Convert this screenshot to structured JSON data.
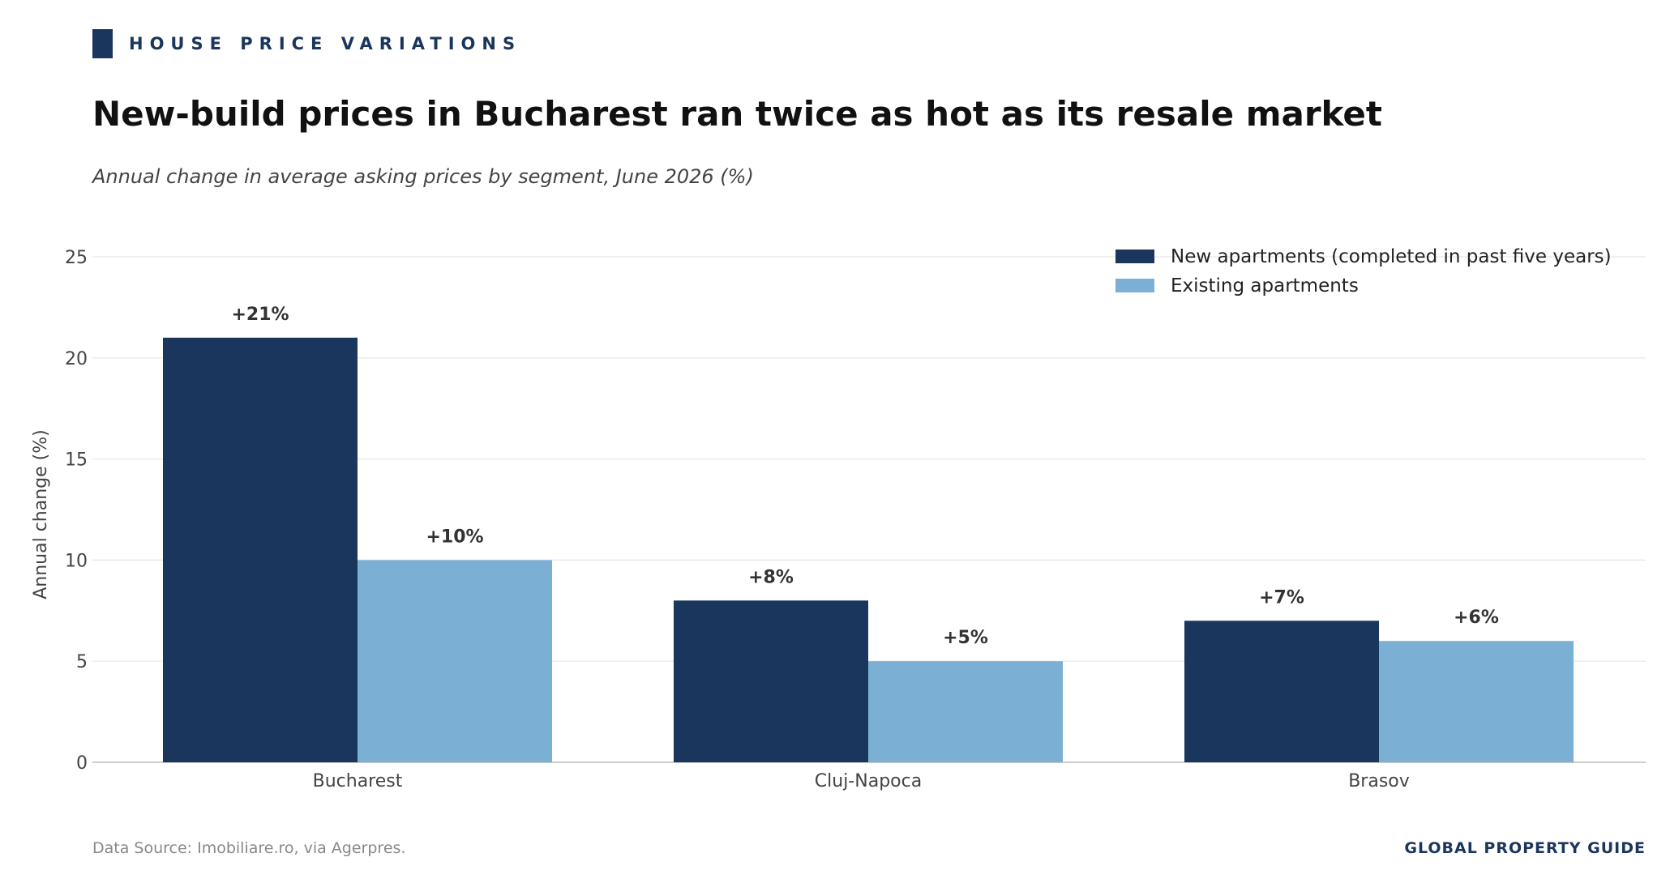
{
  "header": {
    "kicker": "HOUSE PRICE VARIATIONS",
    "title": "New-build prices in Bucharest ran twice as hot as its resale market",
    "subtitle": "Annual change in average asking prices by segment, June 2026 (%)"
  },
  "footer": {
    "source": "Data Source: Imobiliare.ro, via Agerpres.",
    "brand": "GLOBAL PROPERTY GUIDE"
  },
  "colors": {
    "new": "#1a365d",
    "existing": "#7bafd4",
    "accent": "#1a365d",
    "grid": "#e6e6e6"
  },
  "chart_data": {
    "type": "bar",
    "categories": [
      "Bucharest",
      "Cluj-Napoca",
      "Brasov"
    ],
    "series": [
      {
        "name": "New apartments (completed in past five years)",
        "values": [
          21,
          8,
          7
        ],
        "labels": [
          "+21%",
          "+8%",
          "+7%"
        ]
      },
      {
        "name": "Existing apartments",
        "values": [
          10,
          5,
          6
        ],
        "labels": [
          "+10%",
          "+5%",
          "+6%"
        ]
      }
    ],
    "ylabel": "Annual change (%)",
    "xlabel": "",
    "ylim": [
      0,
      25
    ],
    "yticks": [
      0,
      5,
      10,
      15,
      20,
      25
    ],
    "grid": true,
    "legend": "top-right"
  }
}
